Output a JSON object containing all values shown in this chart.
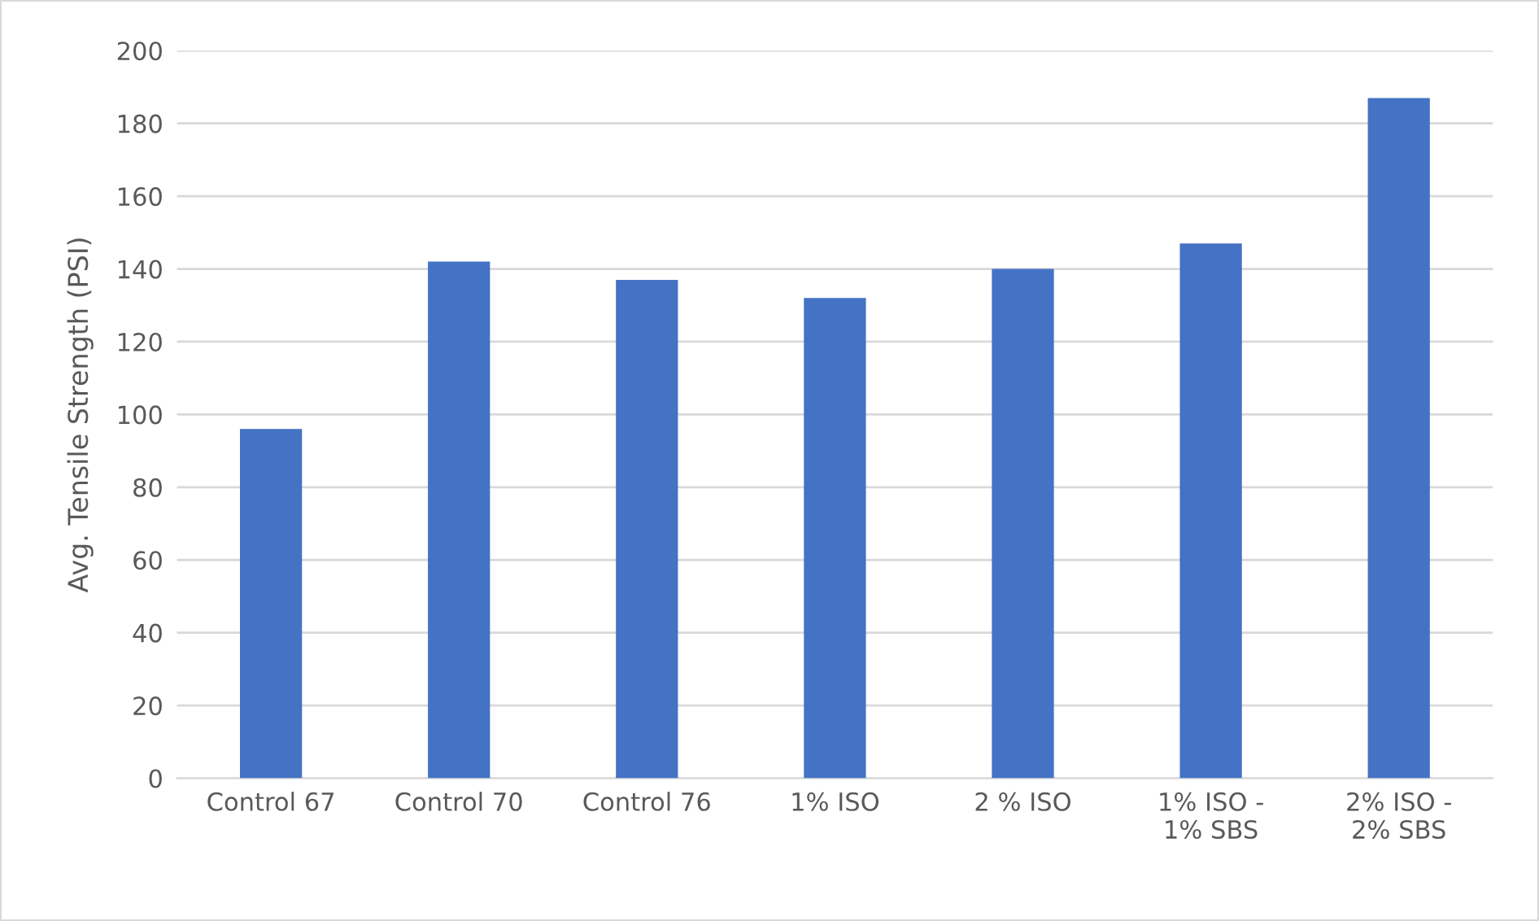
{
  "chart_data": {
    "type": "bar",
    "ylabel": "Avg. Tensile Strength (PSI)",
    "categories": [
      "Control 67",
      "Control 70",
      "Control 76",
      "1% ISO",
      "2 % ISO",
      "1% ISO -\n1% SBS",
      "2% ISO -\n2% SBS"
    ],
    "values": [
      96,
      142,
      137,
      132,
      140,
      147,
      187
    ],
    "color": "#4472c4",
    "ylim": [
      0,
      200
    ],
    "yticks": [
      0,
      20,
      40,
      60,
      80,
      100,
      120,
      140,
      160,
      180,
      200
    ],
    "grid": "y"
  }
}
